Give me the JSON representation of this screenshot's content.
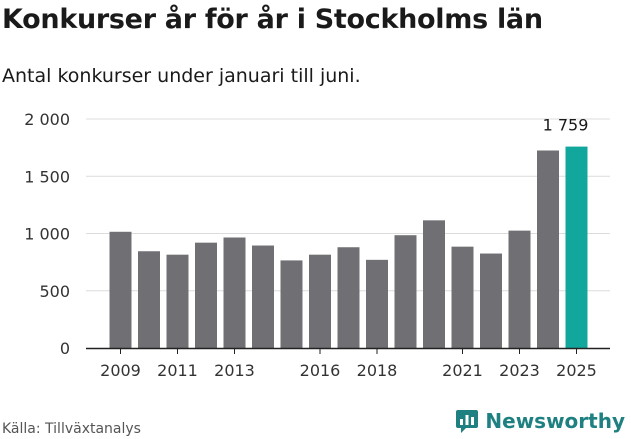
{
  "header": {
    "title": "Konkurser år för år i Stockholms län",
    "subtitle": "Antal konkurser under januari till juni."
  },
  "footer": {
    "source": "Källa: Tillväxtanalys",
    "brand": "Newsworthy",
    "brand_icon": "newsworthy-logo-icon"
  },
  "colors": {
    "bar": "#706f73",
    "highlight": "#12a79d",
    "grid": "#dcdcdc",
    "axis": "#222222",
    "brand": "#1e8080"
  },
  "chart_data": {
    "type": "bar",
    "categories": [
      "2009",
      "2010",
      "2011",
      "2012",
      "2013",
      "2014",
      "2015",
      "2016",
      "2017",
      "2018",
      "2019",
      "2020",
      "2021",
      "2022",
      "2023",
      "2024",
      "2025"
    ],
    "x_tick_labels": [
      "2009",
      "2011",
      "2013",
      "2016",
      "2018",
      "2021",
      "2023",
      "2025"
    ],
    "values": [
      1015,
      845,
      815,
      920,
      965,
      895,
      765,
      815,
      880,
      770,
      985,
      1115,
      885,
      825,
      1025,
      1725,
      1759
    ],
    "highlight_category": "2025",
    "data_labels": [
      {
        "category": "2025",
        "text": "1 759"
      }
    ],
    "y_ticks": [
      0,
      500,
      1000,
      1500,
      2000
    ],
    "y_tick_labels": [
      "0",
      "500",
      "1 000",
      "1 500",
      "2 000"
    ],
    "ylim": [
      0,
      2000
    ],
    "grid": true,
    "legend": "none",
    "title": "Konkurser år för år i Stockholms län",
    "subtitle": "Antal konkurser under januari till juni.",
    "xlabel": "",
    "ylabel": ""
  }
}
